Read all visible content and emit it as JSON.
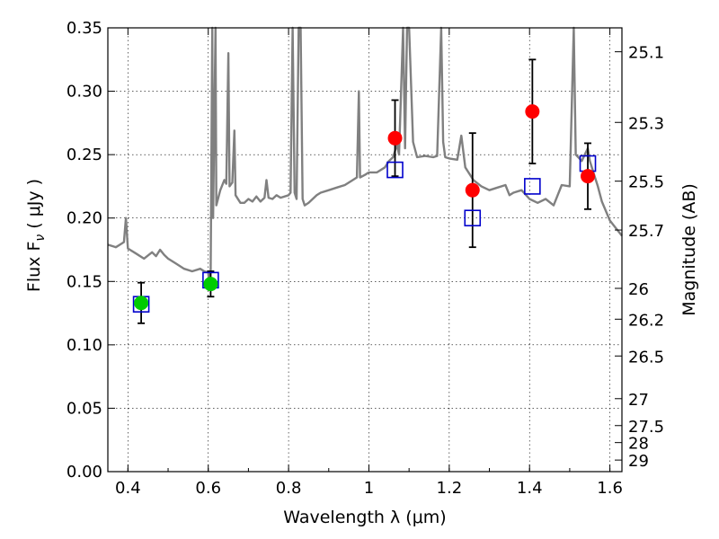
{
  "chart_data": {
    "type": "scatter",
    "xlabel": "Wavelength  λ (μm)",
    "ylabel": "Flux  F",
    "ylabel_sub": "ν",
    "ylabel_unit": "  ( μJy )",
    "ylabel_right": "Magnitude (AB)",
    "xlim": [
      0.35,
      1.63
    ],
    "ylim": [
      0.0,
      0.35
    ],
    "grid": true,
    "x_ticks": [
      0.4,
      0.6,
      0.8,
      1.0,
      1.2,
      1.4,
      1.6
    ],
    "x_tick_labels": [
      "0.4",
      "0.6",
      "0.8",
      "1",
      "1.2",
      "1.4",
      "1.6"
    ],
    "y_ticks": [
      0.0,
      0.05,
      0.1,
      0.15,
      0.2,
      0.25,
      0.3,
      0.35
    ],
    "y_tick_labels": [
      "0.00",
      "0.05",
      "0.10",
      "0.15",
      "0.20",
      "0.25",
      "0.30",
      "0.35"
    ],
    "right_ticks": [
      {
        "label": "25.1",
        "mag": 25.1
      },
      {
        "label": "25.3",
        "mag": 25.3
      },
      {
        "label": "25.5",
        "mag": 25.5
      },
      {
        "label": "25.7",
        "mag": 25.7
      },
      {
        "label": "26",
        "mag": 26.0
      },
      {
        "label": "26.2",
        "mag": 26.2
      },
      {
        "label": "26.5",
        "mag": 26.5
      },
      {
        "label": "27",
        "mag": 27.0
      },
      {
        "label": "27.5",
        "mag": 27.5
      },
      {
        "label": "28",
        "mag": 28.0
      },
      {
        "label": "29",
        "mag": 29.0
      }
    ],
    "colors": {
      "model": "#808080",
      "optical": "#00cc00",
      "nir": "#ff0000",
      "synthetic": "#0000cc",
      "errorbar": "#000000"
    },
    "series": [
      {
        "kind": "model_spectrum",
        "points": [
          [
            0.35,
            0.179
          ],
          [
            0.37,
            0.177
          ],
          [
            0.38,
            0.179
          ],
          [
            0.39,
            0.181
          ],
          [
            0.395,
            0.2
          ],
          [
            0.4,
            0.176
          ],
          [
            0.42,
            0.172
          ],
          [
            0.44,
            0.168
          ],
          [
            0.46,
            0.173
          ],
          [
            0.47,
            0.17
          ],
          [
            0.48,
            0.175
          ],
          [
            0.49,
            0.171
          ],
          [
            0.5,
            0.168
          ],
          [
            0.52,
            0.164
          ],
          [
            0.54,
            0.16
          ],
          [
            0.56,
            0.158
          ],
          [
            0.58,
            0.16
          ],
          [
            0.59,
            0.158
          ],
          [
            0.6,
            0.157
          ],
          [
            0.603,
            0.145
          ],
          [
            0.606,
            0.158
          ],
          [
            0.61,
            0.35
          ],
          [
            0.612,
            0.2
          ],
          [
            0.618,
            0.35
          ],
          [
            0.62,
            0.21
          ],
          [
            0.63,
            0.222
          ],
          [
            0.64,
            0.23
          ],
          [
            0.645,
            0.227
          ],
          [
            0.65,
            0.33
          ],
          [
            0.653,
            0.225
          ],
          [
            0.66,
            0.228
          ],
          [
            0.665,
            0.269
          ],
          [
            0.668,
            0.218
          ],
          [
            0.68,
            0.212
          ],
          [
            0.69,
            0.212
          ],
          [
            0.7,
            0.215
          ],
          [
            0.71,
            0.213
          ],
          [
            0.72,
            0.217
          ],
          [
            0.73,
            0.213
          ],
          [
            0.74,
            0.216
          ],
          [
            0.745,
            0.23
          ],
          [
            0.75,
            0.216
          ],
          [
            0.76,
            0.215
          ],
          [
            0.77,
            0.218
          ],
          [
            0.78,
            0.216
          ],
          [
            0.8,
            0.218
          ],
          [
            0.805,
            0.22
          ],
          [
            0.81,
            0.35
          ],
          [
            0.815,
            0.22
          ],
          [
            0.82,
            0.215
          ],
          [
            0.825,
            0.35
          ],
          [
            0.83,
            0.35
          ],
          [
            0.835,
            0.215
          ],
          [
            0.84,
            0.21
          ],
          [
            0.85,
            0.212
          ],
          [
            0.86,
            0.215
          ],
          [
            0.87,
            0.218
          ],
          [
            0.88,
            0.22
          ],
          [
            0.9,
            0.222
          ],
          [
            0.92,
            0.224
          ],
          [
            0.94,
            0.226
          ],
          [
            0.96,
            0.23
          ],
          [
            0.97,
            0.232
          ],
          [
            0.975,
            0.3
          ],
          [
            0.978,
            0.232
          ],
          [
            0.99,
            0.234
          ],
          [
            1.0,
            0.236
          ],
          [
            1.02,
            0.236
          ],
          [
            1.04,
            0.24
          ],
          [
            1.05,
            0.245
          ],
          [
            1.06,
            0.248
          ],
          [
            1.07,
            0.258
          ],
          [
            1.075,
            0.25
          ],
          [
            1.085,
            0.35
          ],
          [
            1.09,
            0.255
          ],
          [
            1.095,
            0.35
          ],
          [
            1.1,
            0.35
          ],
          [
            1.11,
            0.26
          ],
          [
            1.12,
            0.248
          ],
          [
            1.14,
            0.249
          ],
          [
            1.16,
            0.248
          ],
          [
            1.17,
            0.249
          ],
          [
            1.18,
            0.35
          ],
          [
            1.185,
            0.26
          ],
          [
            1.19,
            0.248
          ],
          [
            1.2,
            0.247
          ],
          [
            1.22,
            0.246
          ],
          [
            1.23,
            0.265
          ],
          [
            1.24,
            0.24
          ],
          [
            1.26,
            0.23
          ],
          [
            1.28,
            0.225
          ],
          [
            1.3,
            0.222
          ],
          [
            1.32,
            0.224
          ],
          [
            1.34,
            0.226
          ],
          [
            1.35,
            0.218
          ],
          [
            1.36,
            0.22
          ],
          [
            1.38,
            0.222
          ],
          [
            1.4,
            0.215
          ],
          [
            1.42,
            0.212
          ],
          [
            1.44,
            0.215
          ],
          [
            1.46,
            0.21
          ],
          [
            1.48,
            0.226
          ],
          [
            1.5,
            0.225
          ],
          [
            1.51,
            0.35
          ],
          [
            1.515,
            0.25
          ],
          [
            1.53,
            0.245
          ],
          [
            1.545,
            0.255
          ],
          [
            1.55,
            0.245
          ],
          [
            1.56,
            0.235
          ],
          [
            1.57,
            0.225
          ],
          [
            1.58,
            0.213
          ],
          [
            1.6,
            0.198
          ],
          [
            1.62,
            0.19
          ],
          [
            1.63,
            0.186
          ]
        ]
      },
      {
        "kind": "observed_optical",
        "points": [
          {
            "x": 0.433,
            "y": 0.133,
            "err_low": 0.016,
            "err_high": 0.016
          },
          {
            "x": 0.606,
            "y": 0.148,
            "err_low": 0.01,
            "err_high": 0.01
          }
        ]
      },
      {
        "kind": "observed_nir",
        "points": [
          {
            "x": 1.065,
            "y": 0.263,
            "err_low": 0.03,
            "err_high": 0.03
          },
          {
            "x": 1.258,
            "y": 0.222,
            "err_low": 0.045,
            "err_high": 0.045
          },
          {
            "x": 1.407,
            "y": 0.284,
            "err_low": 0.041,
            "err_high": 0.041
          },
          {
            "x": 1.545,
            "y": 0.233,
            "err_low": 0.026,
            "err_high": 0.026
          }
        ]
      },
      {
        "kind": "model_synthetic_photometry",
        "points": [
          {
            "x": 0.433,
            "y": 0.132
          },
          {
            "x": 0.606,
            "y": 0.151
          },
          {
            "x": 1.065,
            "y": 0.238
          },
          {
            "x": 1.258,
            "y": 0.2
          },
          {
            "x": 1.407,
            "y": 0.225
          },
          {
            "x": 1.545,
            "y": 0.243
          }
        ]
      }
    ]
  }
}
